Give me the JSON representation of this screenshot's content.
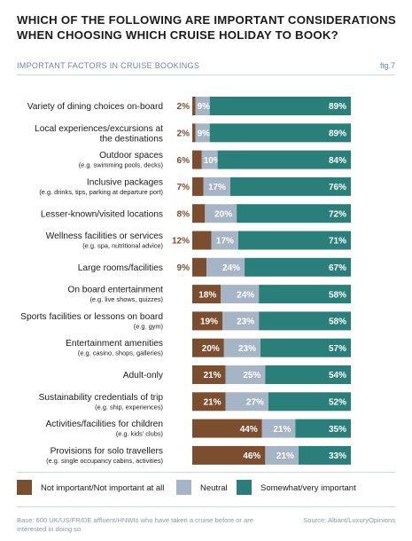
{
  "header": {
    "title": "WHICH OF THE FOLLOWING ARE IMPORTANT CONSIDERATIONS WHEN CHOOSING WHICH CRUISE HOLIDAY TO BOOK?",
    "subtitle": "IMPORTANT FACTORS IN CRUISE BOOKINGS",
    "figure_label": "fig.7"
  },
  "footer": {
    "base": "Base: 600 UK/US/FR/DE affluent/HNWIs who have taken a cruise before or are interested in doing so",
    "source": "Source: Altiant/LuxuryOpinions"
  },
  "colors": {
    "not_important": "#7a4e2e",
    "neutral": "#a6b5c5",
    "important": "#2b7f7a"
  },
  "chart_data": {
    "type": "bar",
    "orientation": "horizontal",
    "stacked": true,
    "title": "IMPORTANT FACTORS IN CRUISE BOOKINGS",
    "value_suffix": "%",
    "legend": "bottom",
    "grid": false,
    "xlim": [
      0,
      100
    ],
    "categories": [
      {
        "label": "Variety of dining choices on-board",
        "sub": ""
      },
      {
        "label": "Local experiences/excursions at the destinations",
        "sub": ""
      },
      {
        "label": "Outdoor spaces",
        "sub": "(e.g. swimming pools, decks)"
      },
      {
        "label": "Inclusive packages",
        "sub": "(e.g. drinks, tips, parking at departure port)"
      },
      {
        "label": "Lesser-known/visited locations",
        "sub": ""
      },
      {
        "label": "Wellness facilities or services",
        "sub": "(e.g. spa, nutritional advice)"
      },
      {
        "label": "Large rooms/facilities",
        "sub": ""
      },
      {
        "label": "On board entertainment",
        "sub": "(e.g. live shows, quizzes)"
      },
      {
        "label": "Sports facilities or lessons on board",
        "sub": "(e.g. gym)"
      },
      {
        "label": "Entertainment amenities",
        "sub": "(e.g. casino, shops, galleries)"
      },
      {
        "label": "Adult-only",
        "sub": ""
      },
      {
        "label": "Sustainability credentials of trip",
        "sub": "(e.g. ship, experiences)"
      },
      {
        "label": "Activities/facilities for children",
        "sub": "(e.g. kids' clubs)"
      },
      {
        "label": "Provisions for solo travellers",
        "sub": "(e.g. single occupancy cabins, activities)"
      }
    ],
    "series": [
      {
        "name": "Not important/Not important at all",
        "color": "#7a4e2e",
        "values": [
          2,
          2,
          6,
          7,
          8,
          12,
          9,
          18,
          19,
          20,
          21,
          21,
          44,
          46
        ]
      },
      {
        "name": "Neutral",
        "color": "#a6b5c5",
        "values": [
          9,
          9,
          10,
          17,
          20,
          17,
          24,
          24,
          23,
          23,
          25,
          27,
          21,
          21
        ]
      },
      {
        "name": "Somewhat/very important",
        "color": "#2b7f7a",
        "values": [
          89,
          89,
          84,
          76,
          72,
          71,
          67,
          58,
          58,
          57,
          54,
          52,
          35,
          33
        ]
      }
    ]
  }
}
